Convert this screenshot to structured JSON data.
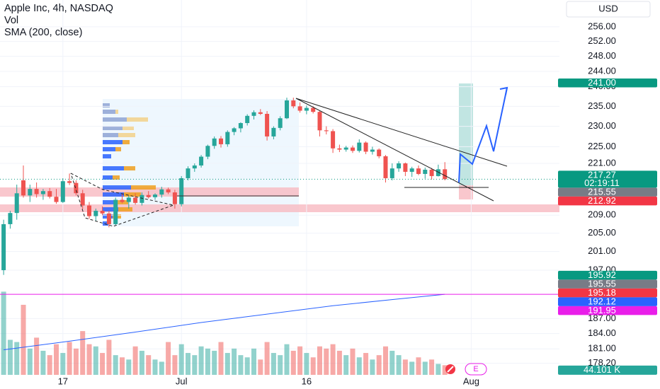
{
  "chart_data": {
    "type": "candlestick",
    "title": "Apple Inc, 4h, NASDAQ",
    "currency": "USD",
    "log_scale": true,
    "grid": true,
    "ylim": [
      176,
      263.5
    ],
    "yticks": [
      {
        "value": 256,
        "label": "256.00"
      },
      {
        "value": 252,
        "label": "252.00"
      },
      {
        "value": 248,
        "label": "248.00"
      },
      {
        "value": 244,
        "label": "244.00"
      },
      {
        "value": 240,
        "label": "240.00"
      },
      {
        "value": 235,
        "label": "235.00"
      },
      {
        "value": 230,
        "label": "230.00"
      },
      {
        "value": 225,
        "label": "225.00"
      },
      {
        "value": 221,
        "label": "221.00"
      },
      {
        "value": 209,
        "label": "209.00"
      },
      {
        "value": 205,
        "label": "205.00"
      },
      {
        "value": 201,
        "label": "201.00"
      },
      {
        "value": 197,
        "label": "197.00"
      },
      {
        "value": 187,
        "label": "187.00"
      },
      {
        "value": 184,
        "label": "184.00"
      },
      {
        "value": 181,
        "label": "181.00"
      },
      {
        "value": 178.2,
        "label": "178.20"
      }
    ],
    "xlim": [
      -0.55,
      84.4
    ],
    "xticks": [
      {
        "value": 9,
        "label": "17"
      },
      {
        "value": 27,
        "label": "Jul"
      },
      {
        "value": 46,
        "label": "16"
      },
      {
        "value": 71,
        "label": "Aug"
      }
    ],
    "x": [
      0,
      1,
      2,
      3,
      4,
      5,
      6,
      7,
      8,
      9,
      10,
      11,
      12,
      13,
      14,
      15,
      16,
      17,
      18,
      19,
      20,
      21,
      22,
      23,
      24,
      25,
      26,
      27,
      28,
      29,
      30,
      31,
      32,
      33,
      34,
      35,
      36,
      37,
      38,
      39,
      40,
      41,
      42,
      43,
      44,
      45,
      46,
      47,
      48,
      49,
      50,
      51,
      52,
      53,
      54,
      55,
      56,
      57,
      58,
      59,
      60,
      61,
      62,
      63,
      64,
      65,
      66,
      67
    ],
    "open": [
      197,
      207,
      209.5,
      217,
      213.5,
      215,
      213.8,
      214.5,
      213.2,
      212,
      216.8,
      216.4,
      214,
      211.2,
      208.8,
      210,
      209.4,
      207,
      212.5,
      212,
      213,
      211.8,
      213.6,
      213.1,
      213.7,
      214.9,
      214.2,
      211.5,
      217.5,
      219.8,
      220.5,
      222.6,
      225.2,
      227,
      225.6,
      228.6,
      229.5,
      230.8,
      232.6,
      233.5,
      233.1,
      227.5,
      229.6,
      232,
      236.5,
      235,
      233.9,
      234.6,
      233.6,
      229,
      228.8,
      224.6,
      224.3,
      224.8,
      224,
      226,
      223.8,
      224.3,
      222.7,
      217.5,
      219.8,
      221,
      219,
      219.8,
      218.5,
      219.5,
      218,
      219.6
    ],
    "high": [
      208,
      210,
      216,
      220.5,
      216,
      216.5,
      215,
      215.2,
      215,
      217.5,
      218.6,
      217,
      214.8,
      212,
      210.5,
      211,
      210,
      213,
      214,
      213.5,
      214,
      214.2,
      214.5,
      214,
      215.5,
      215.3,
      214.8,
      218,
      220.3,
      221,
      223,
      225.5,
      227.5,
      227.6,
      229,
      229.8,
      231,
      233,
      234,
      234.3,
      233.8,
      230,
      232.5,
      237.2,
      237.2,
      236,
      235.2,
      235,
      233.8,
      230,
      229.3,
      225.5,
      225.2,
      225.3,
      226.8,
      226.3,
      225,
      224.6,
      223,
      221,
      221.5,
      221.2,
      220.2,
      220.5,
      220,
      219.9,
      220.7,
      221.3
    ],
    "low": [
      196,
      206,
      208,
      213,
      212,
      213,
      212.5,
      212.8,
      211.6,
      211.8,
      215.9,
      213.5,
      210.4,
      208.2,
      207.8,
      209,
      206.3,
      206.8,
      211.7,
      210.5,
      211.4,
      211.2,
      212.8,
      212.5,
      213,
      213.8,
      210.5,
      211,
      217,
      219,
      220,
      222,
      224.5,
      224.8,
      225,
      227.8,
      228.5,
      230.2,
      231.7,
      232.8,
      226.5,
      226.8,
      229,
      231.8,
      234.5,
      233.4,
      233,
      233.2,
      227.5,
      228,
      223.5,
      223.7,
      223.8,
      223.5,
      223.6,
      223.2,
      223.1,
      222.2,
      216.5,
      217,
      219,
      218,
      217.8,
      218.2,
      217.4,
      217.2,
      217.9,
      217
    ],
    "close": [
      207,
      209.5,
      214,
      213.5,
      215,
      213.8,
      214.5,
      213.2,
      212,
      216.8,
      216.4,
      214,
      211.2,
      208.8,
      210,
      209.4,
      207,
      212.5,
      212,
      213,
      211.8,
      213.6,
      213.1,
      213.7,
      214.9,
      214.2,
      211.5,
      217.5,
      219.8,
      220.5,
      222.6,
      225.2,
      227,
      225.6,
      228.6,
      229.5,
      230.8,
      232.6,
      233.5,
      233.1,
      227.5,
      229.6,
      232,
      236.5,
      235,
      233.9,
      234.6,
      233.6,
      229,
      228.8,
      224.6,
      224.3,
      224.8,
      224,
      226,
      223.8,
      224.3,
      222.7,
      217.5,
      219.8,
      221,
      219,
      219.8,
      218.5,
      219.5,
      218,
      219.6,
      217.27
    ],
    "up_color": "#26a69a",
    "down_color": "#ef5350",
    "volume": {
      "name": "Vol",
      "ylim": [
        0,
        420000
      ],
      "values": [
        380000,
        160000,
        150000,
        320000,
        120000,
        170000,
        110000,
        90000,
        140000,
        100000,
        150000,
        120000,
        200000,
        140000,
        130000,
        100000,
        160000,
        90000,
        80000,
        70000,
        130000,
        110000,
        90000,
        70000,
        60000,
        150000,
        90000,
        140000,
        100000,
        90000,
        130000,
        120000,
        110000,
        150000,
        100000,
        120000,
        90000,
        80000,
        120000,
        70000,
        150000,
        100000,
        90000,
        140000,
        110000,
        130000,
        100000,
        80000,
        130000,
        120000,
        140000,
        110000,
        90000,
        120000,
        80000,
        100000,
        70000,
        90000,
        130000,
        110000,
        90000,
        70000,
        60000,
        80000,
        60000,
        70000,
        50000,
        44101
      ]
    },
    "sma": {
      "name": "SMA (200, close)",
      "color": "#2962ff",
      "x": [
        0,
        10,
        20,
        30,
        40,
        50,
        60,
        67
      ],
      "values": [
        180.8,
        182.5,
        184.3,
        186.2,
        187.9,
        189.6,
        191,
        191.95
      ]
    },
    "price_tags": [
      {
        "value": 241,
        "label": "241.00",
        "color": "#089981"
      },
      {
        "value": 217.27,
        "label": "217.27",
        "countdown": "02:19:11",
        "color": "#089981",
        "line": "dotted"
      },
      {
        "value": 215.55,
        "label": "215.55",
        "color": "#787b86"
      },
      {
        "value": 212.92,
        "label": "212.92",
        "color": "#f23645"
      },
      {
        "value": 195.92,
        "label": "195.92",
        "color": "#089981"
      },
      {
        "value": 195.55,
        "label": "195.55",
        "color": "#787b86"
      },
      {
        "value": 195.18,
        "label": "195.18",
        "color": "#f23645"
      },
      {
        "value": 192.12,
        "label": "192.12",
        "color": "#2962ff"
      },
      {
        "value": 191.95,
        "label": "191.95",
        "color": "#e91ee9",
        "line": "solid"
      }
    ],
    "volume_tag": {
      "value": 44101,
      "label": "44.101 K",
      "color": "#26a69a"
    }
  }
}
